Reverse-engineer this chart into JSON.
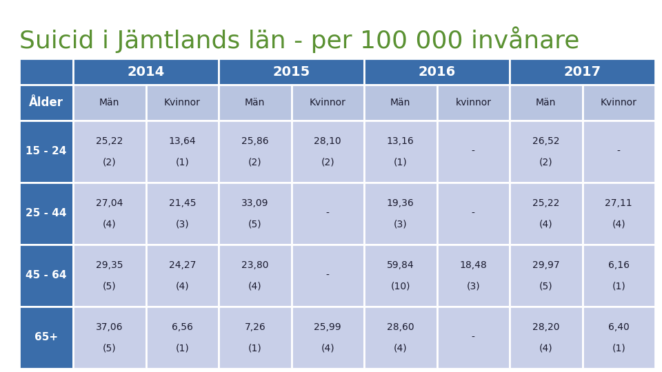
{
  "title": "Suicid i Jämtlands län - per 100 000 invånare",
  "title_color": "#5a9132",
  "title_fontsize": 26,
  "header_bg_dark": "#3a6daa",
  "header_bg_light": "#b8c4e0",
  "row_bg_dark": "#3a6daa",
  "row_bg_light": "#c8cfe8",
  "header_text_color": "#ffffff",
  "cell_text_color": "#1a1a2e",
  "years": [
    "2014",
    "2015",
    "2016",
    "2017"
  ],
  "sub_headers": [
    "Män",
    "Kvinnor",
    "Män",
    "Kvinnor",
    "Män",
    "kvinnor",
    "Män",
    "Kvinnor"
  ],
  "age_groups": [
    "15 - 24",
    "25 - 44",
    "45 - 64",
    "65+"
  ],
  "table_data": [
    [
      "25,22",
      "(2)",
      "13,64",
      "(1)",
      "25,86",
      "(2)",
      "28,10",
      "(2)",
      "13,16",
      "(1)",
      "-",
      "",
      "26,52",
      "(2)",
      "-",
      ""
    ],
    [
      "27,04",
      "(4)",
      "21,45",
      "(3)",
      "33,09",
      "(5)",
      "-",
      "",
      "19,36",
      "(3)",
      "-",
      "",
      "25,22",
      "(4)",
      "27,11",
      "(4)"
    ],
    [
      "29,35",
      "(5)",
      "24,27",
      "(4)",
      "23,80",
      "(4)",
      "-",
      "",
      "59,84",
      "(10)",
      "18,48",
      "(3)",
      "29,97",
      "(5)",
      "6,16",
      "(1)"
    ],
    [
      "37,06",
      "(5)",
      "6,56",
      "(1)",
      "7,26",
      "(1)",
      "25,99",
      "(4)",
      "28,60",
      "(4)",
      "-",
      "",
      "28,20",
      "(4)",
      "6,40",
      "(1)"
    ]
  ]
}
